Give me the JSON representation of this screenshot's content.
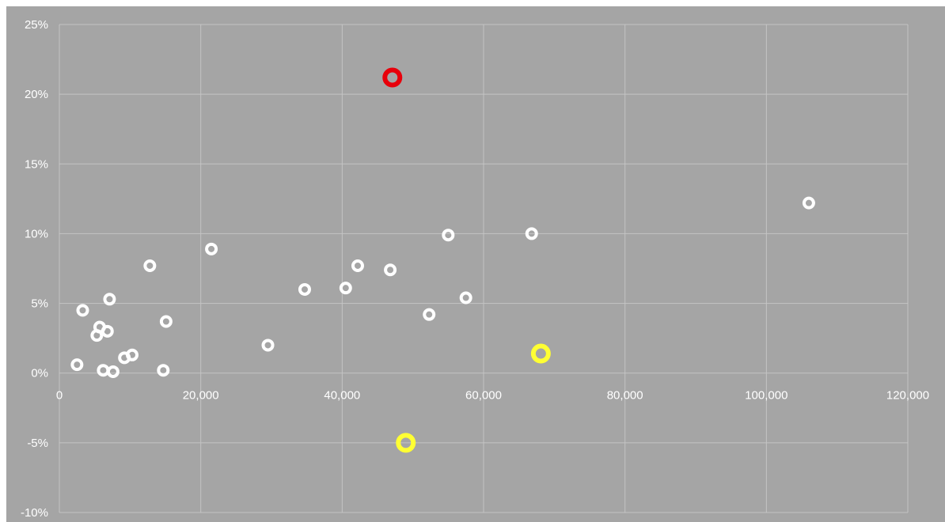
{
  "chart_data": {
    "type": "scatter",
    "title": "",
    "xlabel": "",
    "ylabel": "",
    "xlim": [
      0,
      120000
    ],
    "ylim": [
      -10,
      25
    ],
    "x_ticks": [
      0,
      20000,
      40000,
      60000,
      80000,
      100000,
      120000
    ],
    "x_tick_labels": [
      "0",
      "20,000",
      "40,000",
      "60,000",
      "80,000",
      "100,000",
      "120,000"
    ],
    "y_ticks": [
      25,
      20,
      15,
      10,
      5,
      0,
      -5,
      -10
    ],
    "y_tick_labels": [
      "25%",
      "20%",
      "15%",
      "10%",
      "5%",
      "0%",
      "-5%",
      "-10%"
    ],
    "grid": true,
    "colors": {
      "background": "#a5a5a5",
      "grid": "#c4c4c4",
      "text": "#ffffff",
      "default_marker": "#ffffff",
      "highlight_red": "#e8000b",
      "highlight_yellow": "#ffff33"
    },
    "series": [
      {
        "color": "#ffffff",
        "points": [
          {
            "x": 2500,
            "y": 0.6
          },
          {
            "x": 3300,
            "y": 4.5
          },
          {
            "x": 5300,
            "y": 2.7
          },
          {
            "x": 5700,
            "y": 3.3
          },
          {
            "x": 6200,
            "y": 0.2
          },
          {
            "x": 6800,
            "y": 3.0
          },
          {
            "x": 7100,
            "y": 5.3
          },
          {
            "x": 7600,
            "y": 0.1
          },
          {
            "x": 9200,
            "y": 1.1
          },
          {
            "x": 10300,
            "y": 1.3
          },
          {
            "x": 12800,
            "y": 7.7
          },
          {
            "x": 14700,
            "y": 0.2
          },
          {
            "x": 15100,
            "y": 3.7
          },
          {
            "x": 21500,
            "y": 8.9
          },
          {
            "x": 29500,
            "y": 2.0
          },
          {
            "x": 34700,
            "y": 6.0
          },
          {
            "x": 40500,
            "y": 6.1
          },
          {
            "x": 42200,
            "y": 7.7
          },
          {
            "x": 46800,
            "y": 7.4
          },
          {
            "x": 52300,
            "y": 4.2
          },
          {
            "x": 55000,
            "y": 9.9
          },
          {
            "x": 57500,
            "y": 5.4
          },
          {
            "x": 66800,
            "y": 10.0
          },
          {
            "x": 106000,
            "y": 12.2
          }
        ]
      },
      {
        "color": "#e8000b",
        "points": [
          {
            "x": 47100,
            "y": 21.2
          }
        ]
      },
      {
        "color": "#ffff33",
        "points": [
          {
            "x": 68100,
            "y": 1.4
          },
          {
            "x": 49000,
            "y": -5.0
          }
        ]
      }
    ]
  }
}
